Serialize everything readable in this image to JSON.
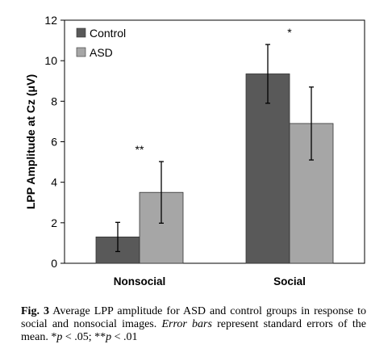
{
  "chart_data": {
    "type": "bar",
    "categories": [
      "Nonsocial",
      "Social"
    ],
    "series": [
      {
        "name": "Control",
        "color": "#595959",
        "values": [
          1.3,
          9.35
        ],
        "error": [
          0.72,
          1.45
        ]
      },
      {
        "name": "ASD",
        "color": "#a6a6a6",
        "values": [
          3.5,
          6.9
        ],
        "error": [
          1.52,
          1.8
        ]
      }
    ],
    "annotations": [
      "**",
      "*"
    ],
    "ylabel": "LPP Amplitude at Cz (μV)",
    "ylim": [
      0,
      12
    ],
    "yticks": [
      "0",
      "2",
      "4",
      "6",
      "8",
      "10",
      "12"
    ],
    "legend_position": "top-left",
    "grid": false
  },
  "caption": {
    "fig_label": "Fig. 3",
    "text_1": "Average LPP amplitude for ASD and control groups in response to social and nonsocial images.",
    "italic_1": "Error bars",
    "text_2": "represent standard errors of the mean. *",
    "p1": "p",
    "text_3": "< .05; **",
    "p2": "p",
    "text_4": "< .01"
  }
}
